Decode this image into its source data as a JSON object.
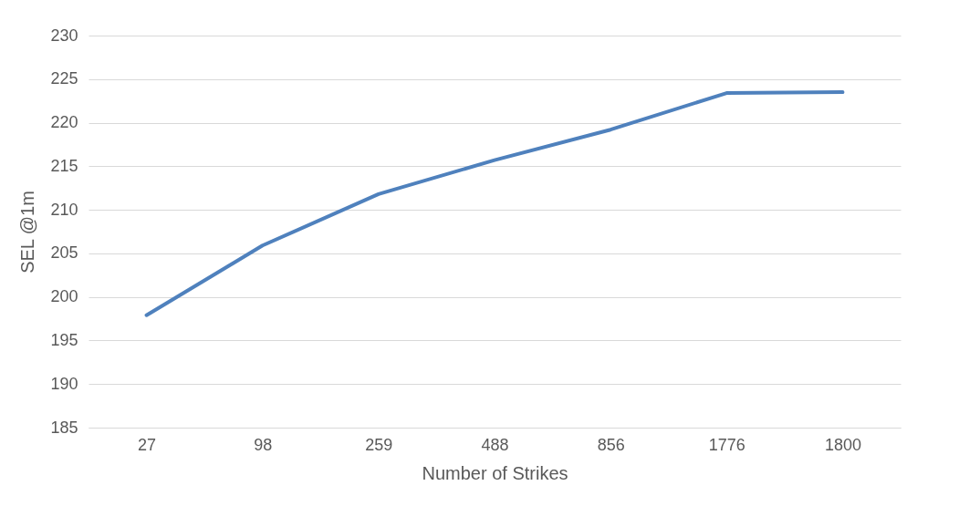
{
  "chart_data": {
    "type": "line",
    "xlabel": "Number of Strikes",
    "ylabel": "SEL @1m",
    "categories": [
      "27",
      "98",
      "259",
      "488",
      "856",
      "1776",
      "1800"
    ],
    "series": [
      {
        "color": "#4f81bd",
        "values": [
          197.9,
          205.9,
          211.8,
          215.7,
          219.2,
          223.4,
          223.5
        ]
      }
    ],
    "ylim": [
      185,
      230
    ],
    "yticks": [
      185,
      190,
      195,
      200,
      205,
      210,
      215,
      220,
      225,
      230
    ],
    "grid": "y",
    "marker": "none",
    "line_style": "solid"
  }
}
